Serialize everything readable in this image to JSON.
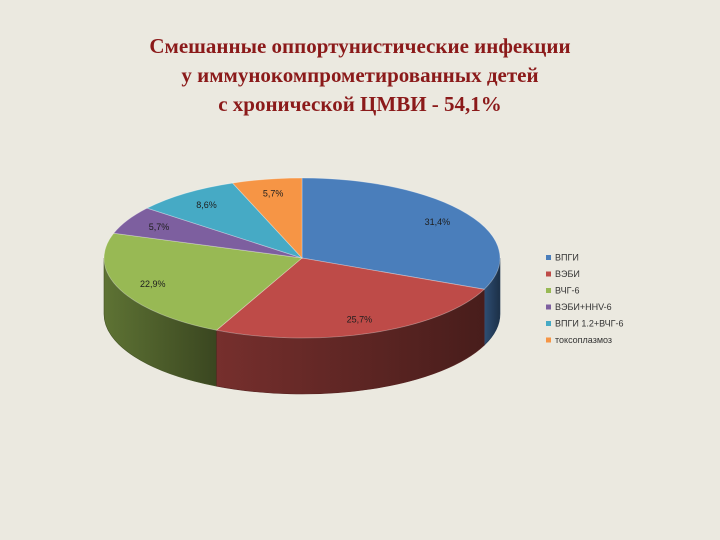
{
  "title_lines": [
    "Смешанные оппортунистические инфекции",
    "у иммунокомпрометированных детей",
    "с хронической ЦМВИ  - 54,1%"
  ],
  "chart_data": {
    "type": "pie",
    "title": "Смешанные оппортунистические инфекции у иммунокомпрометированных детей с хронической ЦМВИ - 54,1%",
    "legend_position": "right",
    "categories": [
      "ВПГИ",
      "ВЭБИ",
      "ВЧГ-6",
      "ВЭБИ+ННV-6",
      "ВПГИ 1.2+ВЧГ-6",
      "токсоплазмоз"
    ],
    "values": [
      31.4,
      25.7,
      22.9,
      5.7,
      8.6,
      5.7
    ],
    "labels": [
      "31,4%",
      "25,7%",
      "22,9%",
      "5,7%",
      "8,6%",
      "5,7%"
    ],
    "colors": [
      "#4a7ebb",
      "#be4b48",
      "#98b954",
      "#7d5f9f",
      "#46aac5",
      "#f69545"
    ]
  }
}
